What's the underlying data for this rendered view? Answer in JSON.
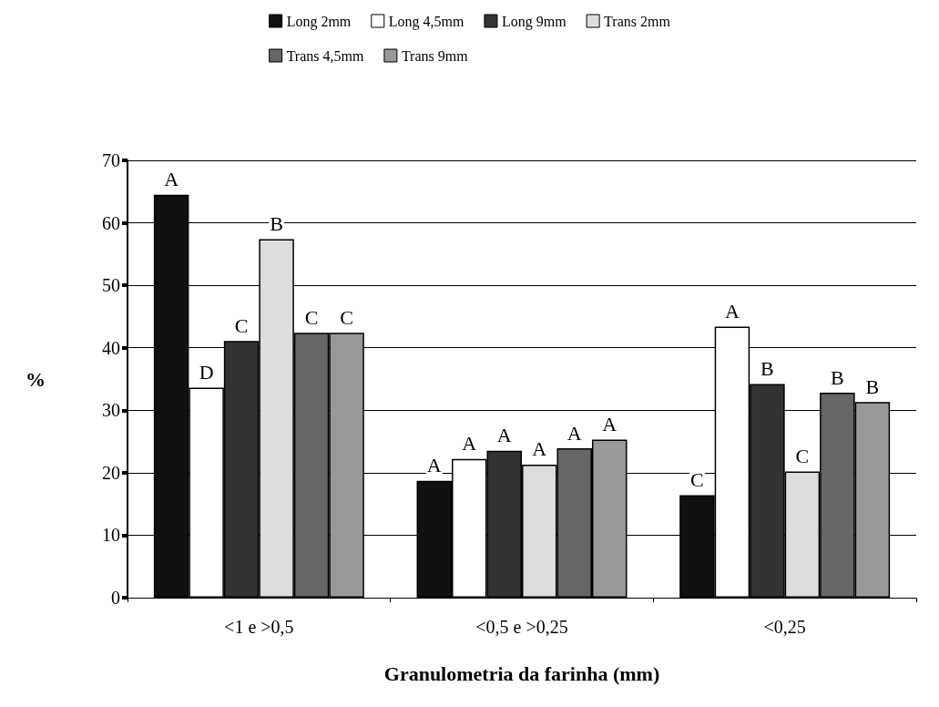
{
  "chart_data": {
    "type": "bar",
    "xlabel": "Granulometria da farinha (mm)",
    "ylabel": "%",
    "categories": [
      "<1 e >0,5",
      "<0,5 e >0,25",
      "<0,25"
    ],
    "series": [
      {
        "name": "Long 2mm",
        "color": "#111111",
        "values": [
          64.5,
          18.7,
          16.4
        ],
        "value_labels": [
          "A",
          "A",
          "C"
        ]
      },
      {
        "name": "Long 4,5mm",
        "color": "#ffffff",
        "values": [
          33.6,
          22.2,
          43.4
        ],
        "value_labels": [
          "D",
          "A",
          "A"
        ]
      },
      {
        "name": "Long 9mm",
        "color": "#333333",
        "values": [
          41.1,
          23.5,
          34.2
        ],
        "value_labels": [
          "C",
          "A",
          "B"
        ]
      },
      {
        "name": "Trans 2mm",
        "color": "#dddddd",
        "values": [
          57.4,
          21.3,
          20.2
        ],
        "value_labels": [
          "B",
          "A",
          "C"
        ]
      },
      {
        "name": "Trans 4,5mm",
        "color": "#666666",
        "values": [
          42.4,
          23.9,
          32.8
        ],
        "value_labels": [
          "C",
          "A",
          "B"
        ]
      },
      {
        "name": "Trans 9mm",
        "color": "#999999",
        "values": [
          42.4,
          25.3,
          31.3
        ],
        "value_labels": [
          "C",
          "A",
          "B"
        ]
      }
    ],
    "ylim": [
      0,
      70
    ],
    "yticks": [
      0,
      10,
      20,
      30,
      40,
      50,
      60,
      70
    ],
    "grid": "y",
    "legend": "top"
  }
}
